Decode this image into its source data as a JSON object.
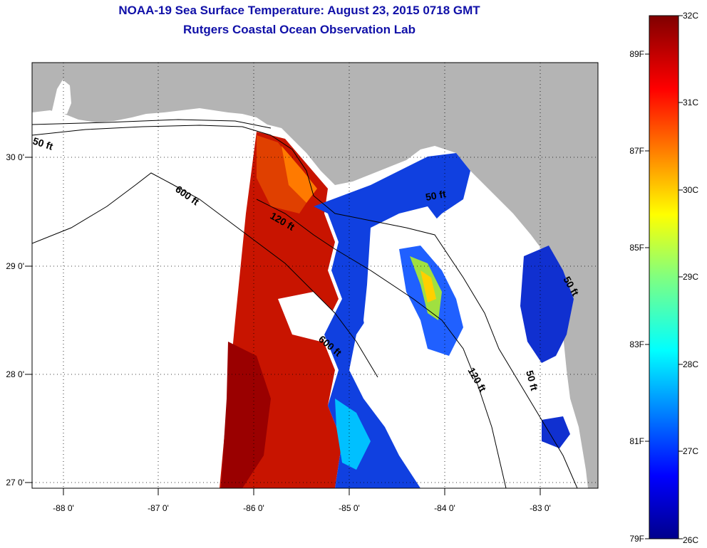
{
  "title": "NOAA-19 Sea Surface Temperature:  August 23, 2015 0718 GMT",
  "subtitle": "Rutgers Coastal Ocean Observation Lab",
  "map": {
    "longitude_ticks": [
      "-88 0'",
      "-87 0'",
      "-86 0'",
      "-85 0'",
      "-84 0'",
      "-83 0'"
    ],
    "latitude_ticks": [
      "30 0'",
      "29 0'",
      "28 0'",
      "27 0'"
    ],
    "contour_labels": [
      "50 ft",
      "600 ft",
      "120 ft",
      "50 ft",
      "600 ft",
      "120 ft",
      "50 ft",
      "50 ft"
    ]
  },
  "colorbar": {
    "celsius": [
      "32C",
      "31C",
      "30C",
      "29C",
      "28C",
      "27C",
      "26C"
    ],
    "fahrenheit": [
      "89F",
      "87F",
      "85F",
      "83F",
      "81F",
      "79F"
    ]
  },
  "colors": {
    "title": "#1010a8",
    "land": "#b4b4b4",
    "no_data": "#ffffff"
  }
}
